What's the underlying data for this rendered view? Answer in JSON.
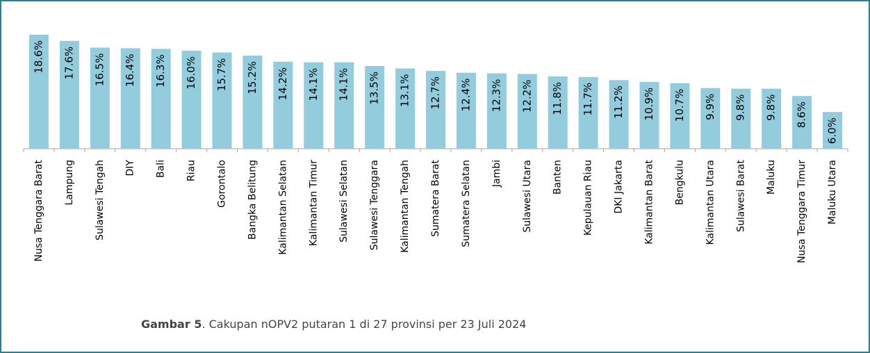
{
  "chart_data": {
    "type": "bar",
    "categories": [
      "Nusa Tenggara Barat",
      "Lampung",
      "Sulawesi Tengah",
      "DIY",
      "Bali",
      "Riau",
      "Gorontalo",
      "Bangka Belitung",
      "Kalimantan Selatan",
      "Kalimantan Timur",
      "Sulawesi Selatan",
      "Sulawesi Tenggara",
      "Kalimantan Tengah",
      "Sumatera Barat",
      "Sumatera Selatan",
      "Jambi",
      "Sulawesi Utara",
      "Banten",
      "Kepulauan Riau",
      "DKI Jakarta",
      "Kalimantan Barat",
      "Bengkulu",
      "Kalimantan Utara",
      "Sulawesi Barat",
      "Maluku",
      "Nusa Tenggara Timur",
      "Maluku Utara"
    ],
    "values": [
      18.6,
      17.6,
      16.5,
      16.4,
      16.3,
      16.0,
      15.7,
      15.2,
      14.2,
      14.1,
      14.1,
      13.5,
      13.1,
      12.7,
      12.4,
      12.3,
      12.2,
      11.8,
      11.7,
      11.2,
      10.9,
      10.7,
      9.9,
      9.8,
      9.8,
      8.6,
      6.0
    ],
    "value_labels": [
      "18.6%",
      "17.6%",
      "16.5%",
      "16.4%",
      "16.3%",
      "16.0%",
      "15.7%",
      "15.2%",
      "14.2%",
      "14.1%",
      "14.1%",
      "13.5%",
      "13.1%",
      "12.7%",
      "12.4%",
      "12.3%",
      "12.2%",
      "11.8%",
      "11.7%",
      "11.2%",
      "10.9%",
      "10.7%",
      "9.9%",
      "9.8%",
      "9.8%",
      "8.6%",
      "6.0%"
    ],
    "color": "#93cddd"
  },
  "caption": {
    "label": "Gambar 5",
    "text": ". Cakupan nOPV2 putaran 1 di 27 provinsi per 23 Juli 2024"
  }
}
